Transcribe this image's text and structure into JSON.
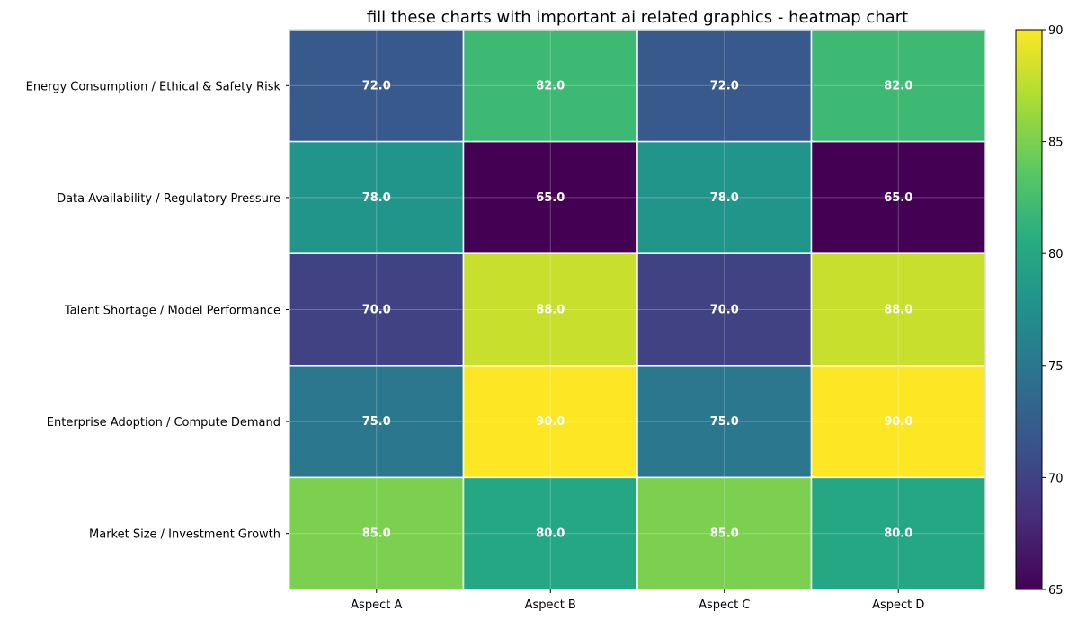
{
  "chart_data": {
    "type": "heatmap",
    "title": "fill these charts with important ai related graphics - heatmap chart",
    "xlabel": "",
    "ylabel": "",
    "x_categories": [
      "Aspect A",
      "Aspect B",
      "Aspect C",
      "Aspect D"
    ],
    "y_categories": [
      "Energy Consumption / Ethical & Safety Risk",
      "Data Availability / Regulatory Pressure",
      "Talent Shortage / Model Performance",
      "Enterprise Adoption / Compute Demand",
      "Market Size / Investment Growth"
    ],
    "values": [
      [
        72.0,
        82.0,
        72.0,
        82.0
      ],
      [
        78.0,
        65.0,
        78.0,
        65.0
      ],
      [
        70.0,
        88.0,
        70.0,
        88.0
      ],
      [
        75.0,
        90.0,
        75.0,
        90.0
      ],
      [
        85.0,
        80.0,
        85.0,
        80.0
      ]
    ],
    "cell_labels": [
      [
        "72.0",
        "82.0",
        "72.0",
        "82.0"
      ],
      [
        "78.0",
        "65.0",
        "78.0",
        "65.0"
      ],
      [
        "70.0",
        "88.0",
        "70.0",
        "88.0"
      ],
      [
        "75.0",
        "90.0",
        "75.0",
        "90.0"
      ],
      [
        "85.0",
        "80.0",
        "85.0",
        "80.0"
      ]
    ],
    "colormap": "viridis",
    "value_range": [
      65,
      90
    ],
    "colorbar": {
      "ticks": [
        65,
        70,
        75,
        80,
        85,
        90
      ],
      "tick_labels": [
        "65",
        "70",
        "75",
        "80",
        "85",
        "90"
      ],
      "placement": "right"
    },
    "grid": true
  }
}
